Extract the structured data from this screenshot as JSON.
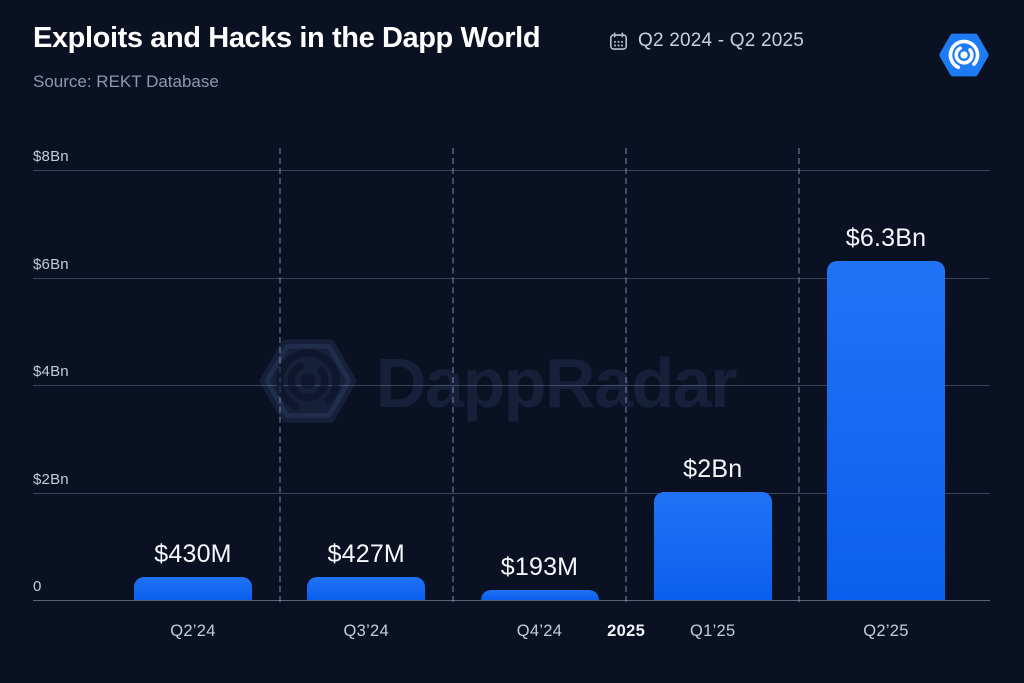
{
  "header": {
    "title": "Exploits and Hacks in the Dapp World",
    "source": "Source: REKT Database",
    "date_range": "Q2 2024 - Q2 2025"
  },
  "watermark": {
    "text": "DappRadar"
  },
  "colors": {
    "background": "#0A1123",
    "bar_top": "#2173F5",
    "bar_bottom": "#0A5FEE",
    "logo_blue": "#1E7BF6",
    "axis_text": "#C5CDDA",
    "value_text": "#F5F8FC",
    "muted_text": "#8E99AF"
  },
  "chart_data": {
    "type": "bar",
    "title": "Exploits and Hacks in the Dapp World",
    "subtitle": "Source: REKT Database",
    "period": "Q2 2024 - Q2 2025",
    "categories": [
      "Q2’24",
      "Q3’24",
      "Q4’24",
      "Q1’25",
      "Q2’25"
    ],
    "values_bn": [
      0.43,
      0.427,
      0.193,
      2,
      6.3
    ],
    "value_labels": [
      "$430M",
      "$427M",
      "$193M",
      "$2Bn",
      "$6.3Bn"
    ],
    "ylabel": "",
    "xlabel": "",
    "ylim": [
      0,
      8
    ],
    "yticks": {
      "labels": [
        "0",
        "$2Bn",
        "$4Bn",
        "$6Bn",
        "$8Bn"
      ],
      "values": [
        0,
        2,
        4,
        6,
        8
      ]
    },
    "year_marker": {
      "label": "2025",
      "between_indices": [
        2,
        3
      ]
    },
    "grid": "horizontal solid lines, vertical dashed quarter separators",
    "legend": "none"
  }
}
